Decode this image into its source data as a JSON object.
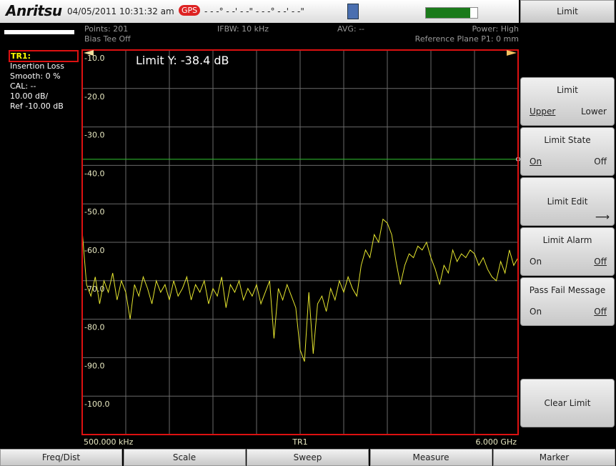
{
  "header": {
    "brand": "Anritsu",
    "datetime": "04/05/2011 10:31:32 am",
    "gps": "GPS",
    "position": "- - -° - -' - -\" - - -° - -' - -\"",
    "menu_title": "Limit"
  },
  "status": {
    "points": "Points: 201",
    "ifbw": "IFBW: 10 kHz",
    "avg": "AVG: --",
    "power": "Power: High",
    "bias": "Bias Tee Off",
    "ref_plane": "Reference Plane P1: 0 mm"
  },
  "trace_info": {
    "name": "TR1:",
    "measurement": "Insertion Loss",
    "smooth": "Smooth: 0 %",
    "cal": "CAL: --",
    "scale": "10.00 dB/",
    "ref": "Ref -10.00 dB"
  },
  "plot": {
    "type": "line",
    "limit": {
      "label": "Limit Y: -38.4 dB",
      "value": -38.4,
      "color": "#2bb02b"
    },
    "ylim": [
      -110,
      -10
    ],
    "yticks": [
      {
        "value": -10,
        "label": "-10.0"
      },
      {
        "value": -20,
        "label": "-20.0"
      },
      {
        "value": -30,
        "label": "-30.0"
      },
      {
        "value": -40,
        "label": "-40.0"
      },
      {
        "value": -50,
        "label": "-50.0"
      },
      {
        "value": -60,
        "label": "-60.0"
      },
      {
        "value": -70,
        "label": "-70.0"
      },
      {
        "value": -80,
        "label": "-80.0"
      },
      {
        "value": -90,
        "label": "-90.0"
      },
      {
        "value": -100,
        "label": "-100.0"
      }
    ],
    "grid": true,
    "x_start": "500.000 kHz",
    "x_center": "TR1",
    "x_stop": "6.000 GHz",
    "trace_color": "#e6e62e",
    "values": [
      -57,
      -71,
      -74,
      -69,
      -76,
      -70,
      -73,
      -68,
      -75,
      -70,
      -73,
      -80,
      -71,
      -74,
      -69,
      -72,
      -76,
      -70,
      -73,
      -71,
      -75,
      -70,
      -74,
      -72,
      -69,
      -75,
      -71,
      -73,
      -70,
      -76,
      -72,
      -74,
      -69,
      -77,
      -71,
      -73,
      -70,
      -75,
      -72,
      -74,
      -71,
      -76,
      -73,
      -70,
      -85,
      -72,
      -75,
      -71,
      -74,
      -77,
      -88,
      -91,
      -73,
      -89,
      -76,
      -74,
      -78,
      -72,
      -75,
      -70,
      -73,
      -69,
      -72,
      -74,
      -66,
      -62,
      -64,
      -58,
      -60,
      -54,
      -55,
      -58,
      -65,
      -71,
      -66,
      -63,
      -64,
      -61,
      -62,
      -60,
      -64,
      -67,
      -71,
      -66,
      -68,
      -62,
      -65,
      -63,
      -64,
      -62,
      -63,
      -66,
      -64,
      -67,
      -69,
      -70,
      -65,
      -68,
      -62,
      -66,
      -64
    ]
  },
  "menu": {
    "limit": {
      "title": "Limit",
      "options": [
        "Upper",
        "Lower"
      ]
    },
    "limit_state": {
      "title": "Limit State",
      "options": [
        "On",
        "Off"
      ]
    },
    "limit_edit": {
      "title": "Limit Edit"
    },
    "limit_alarm": {
      "title": "Limit Alarm",
      "options": [
        "On",
        "Off"
      ]
    },
    "pass_fail": {
      "title": "Pass Fail Message",
      "options": [
        "On",
        "Off"
      ]
    },
    "clear_limit": {
      "title": "Clear Limit"
    }
  },
  "tabs": [
    "Freq/Dist",
    "Scale",
    "Sweep",
    "Measure",
    "Marker"
  ]
}
